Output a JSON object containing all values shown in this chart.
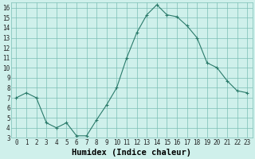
{
  "x": [
    0,
    1,
    2,
    3,
    4,
    5,
    6,
    7,
    8,
    9,
    10,
    11,
    12,
    13,
    14,
    15,
    16,
    17,
    18,
    19,
    20,
    21,
    22,
    23
  ],
  "y": [
    7.0,
    7.5,
    7.0,
    4.5,
    4.0,
    4.5,
    3.2,
    3.2,
    4.8,
    6.3,
    8.0,
    11.0,
    13.5,
    15.3,
    16.3,
    15.3,
    15.1,
    14.2,
    13.0,
    10.5,
    10.0,
    8.7,
    7.7,
    7.5
  ],
  "line_color": "#2a7a6a",
  "marker": "+",
  "marker_color": "#2a7a6a",
  "bg_color": "#cff0eb",
  "grid_color": "#7bbfb5",
  "xlabel": "Humidex (Indice chaleur)",
  "ylim": [
    3,
    16.5
  ],
  "xlim": [
    -0.5,
    23.5
  ],
  "yticks": [
    3,
    4,
    5,
    6,
    7,
    8,
    9,
    10,
    11,
    12,
    13,
    14,
    15,
    16
  ],
  "xticks": [
    0,
    1,
    2,
    3,
    4,
    5,
    6,
    7,
    8,
    9,
    10,
    11,
    12,
    13,
    14,
    15,
    16,
    17,
    18,
    19,
    20,
    21,
    22,
    23
  ],
  "tick_label_size": 5.5,
  "xlabel_size": 7.5
}
